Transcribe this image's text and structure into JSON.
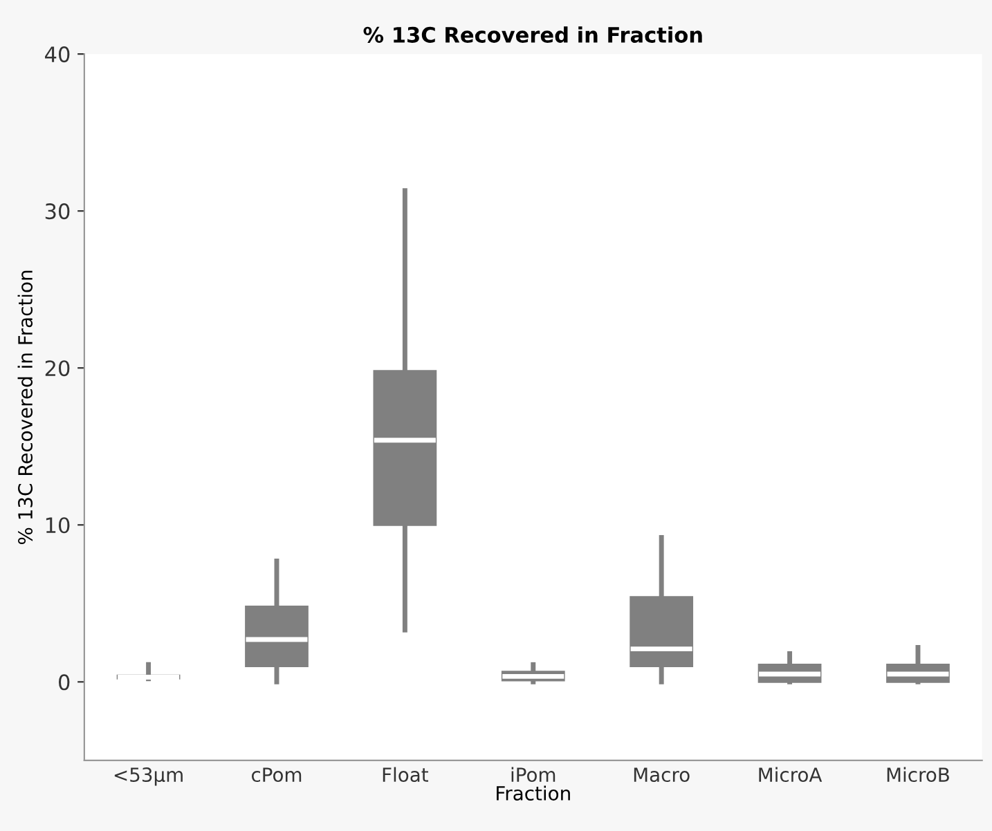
{
  "chart_data": {
    "type": "box",
    "title": "% 13C Recovered in Fraction",
    "xlabel": "Fraction",
    "ylabel": "% 13C Recovered in Fraction",
    "categories": [
      "<53µm",
      "cPom",
      "Float",
      "iPom",
      "Macro",
      "MicroA",
      "MicroB"
    ],
    "color": "#808080",
    "boxes": [
      {
        "low": 0.2,
        "q1": 0.22,
        "median": 0.3,
        "q3": 0.4,
        "high": 1.1
      },
      {
        "low": 0,
        "q1": 1.0,
        "median": 2.7,
        "q3": 4.8,
        "high": 7.7
      },
      {
        "low": 3.3,
        "q1": 10.0,
        "median": 15.4,
        "q3": 19.8,
        "high": 31.3
      },
      {
        "low": 0,
        "q1": 0.1,
        "median": 0.35,
        "q3": 0.65,
        "high": 1.1
      },
      {
        "low": 0,
        "q1": 1.0,
        "median": 2.1,
        "q3": 5.4,
        "high": 9.2
      },
      {
        "low": 0,
        "q1": 0,
        "median": 0.5,
        "q3": 1.1,
        "high": 1.8
      },
      {
        "low": 0,
        "q1": 0,
        "median": 0.5,
        "q3": 1.1,
        "high": 2.2
      }
    ],
    "ylim": [
      -5,
      40
    ],
    "yticks": [
      0,
      10,
      20,
      30,
      40
    ],
    "grid": false,
    "legend": false
  }
}
